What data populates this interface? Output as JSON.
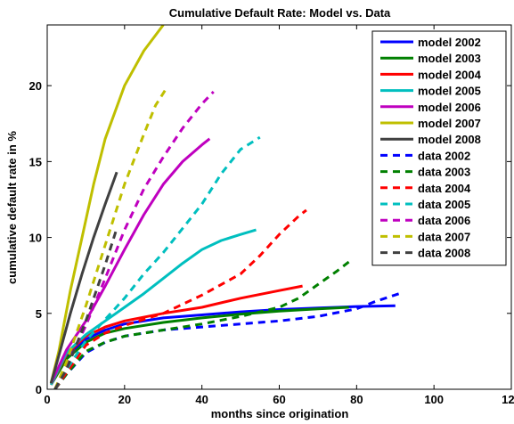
{
  "chart_data": {
    "type": "line",
    "title": "Cumulative Default Rate: Model vs. Data",
    "xlabel": "months since origination",
    "ylabel": "cumulative default rate in %",
    "xlim": [
      0,
      120
    ],
    "ylim": [
      0,
      24
    ],
    "xticks": [
      0,
      20,
      40,
      60,
      80,
      100,
      120
    ],
    "yticks": [
      0,
      5,
      10,
      15,
      20
    ],
    "grid": false,
    "legend_position": "top-right",
    "series": [
      {
        "name": "model 2002",
        "color": "#0000ff",
        "style": "solid",
        "x": [
          1,
          5,
          10,
          15,
          20,
          30,
          40,
          50,
          60,
          70,
          80,
          90
        ],
        "y": [
          0.3,
          2.2,
          3.3,
          3.9,
          4.3,
          4.7,
          4.9,
          5.1,
          5.25,
          5.35,
          5.45,
          5.5
        ]
      },
      {
        "name": "model 2003",
        "color": "#008000",
        "style": "solid",
        "x": [
          1,
          5,
          10,
          15,
          20,
          30,
          40,
          50,
          60,
          70,
          78
        ],
        "y": [
          0.3,
          2.0,
          3.1,
          3.7,
          4.0,
          4.4,
          4.7,
          4.95,
          5.15,
          5.3,
          5.4
        ]
      },
      {
        "name": "model 2004",
        "color": "#ff0000",
        "style": "solid",
        "x": [
          1,
          5,
          10,
          15,
          20,
          30,
          40,
          50,
          60,
          66
        ],
        "y": [
          0.3,
          2.3,
          3.5,
          4.1,
          4.5,
          5.0,
          5.4,
          6.0,
          6.5,
          6.8
        ]
      },
      {
        "name": "model 2005",
        "color": "#00bfbf",
        "style": "solid",
        "x": [
          1,
          5,
          10,
          15,
          20,
          25,
          30,
          35,
          40,
          45,
          50,
          54
        ],
        "y": [
          0.3,
          2.4,
          3.6,
          4.5,
          5.4,
          6.3,
          7.3,
          8.3,
          9.2,
          9.8,
          10.2,
          10.5
        ]
      },
      {
        "name": "model 2006",
        "color": "#bf00bf",
        "style": "solid",
        "x": [
          1,
          5,
          10,
          15,
          20,
          25,
          30,
          35,
          40,
          42
        ],
        "y": [
          0.4,
          2.6,
          4.5,
          6.8,
          9.2,
          11.5,
          13.5,
          15.0,
          16.1,
          16.5
        ]
      },
      {
        "name": "model 2007",
        "color": "#bfbf00",
        "style": "solid",
        "x": [
          1,
          3,
          6,
          9,
          12,
          15,
          20,
          25,
          30
        ],
        "y": [
          0.4,
          2.5,
          6.5,
          10.0,
          13.5,
          16.5,
          20.0,
          22.3,
          24.0
        ]
      },
      {
        "name": "model 2008",
        "color": "#404040",
        "style": "solid",
        "x": [
          1,
          3,
          6,
          9,
          12,
          15,
          18
        ],
        "y": [
          0.4,
          2.2,
          5.0,
          7.6,
          10.0,
          12.2,
          14.3
        ]
      },
      {
        "name": "data 2002",
        "color": "#0000ff",
        "style": "dashed",
        "x": [
          2,
          5,
          10,
          15,
          20,
          30,
          40,
          50,
          60,
          70,
          80,
          85,
          91
        ],
        "y": [
          0.0,
          1.0,
          2.4,
          3.1,
          3.5,
          3.9,
          4.1,
          4.3,
          4.5,
          4.8,
          5.3,
          5.8,
          6.3
        ]
      },
      {
        "name": "data 2003",
        "color": "#008000",
        "style": "dashed",
        "x": [
          2,
          5,
          10,
          15,
          20,
          30,
          40,
          50,
          60,
          65,
          70,
          75,
          78
        ],
        "y": [
          0.0,
          1.0,
          2.5,
          3.1,
          3.5,
          3.9,
          4.3,
          4.8,
          5.4,
          6.0,
          6.9,
          7.8,
          8.4
        ]
      },
      {
        "name": "data 2004",
        "color": "#ff0000",
        "style": "dashed",
        "x": [
          2,
          5,
          10,
          15,
          20,
          30,
          40,
          50,
          55,
          60,
          65,
          67
        ],
        "y": [
          0.0,
          1.1,
          2.9,
          3.7,
          4.2,
          5.0,
          6.2,
          7.6,
          8.8,
          10.2,
          11.4,
          11.8
        ]
      },
      {
        "name": "data 2005",
        "color": "#00bfbf",
        "style": "dashed",
        "x": [
          2,
          5,
          10,
          15,
          20,
          25,
          30,
          35,
          40,
          45,
          50,
          55
        ],
        "y": [
          0.0,
          1.3,
          3.2,
          4.6,
          6.0,
          7.6,
          9.0,
          10.6,
          12.2,
          14.2,
          15.8,
          16.6
        ]
      },
      {
        "name": "data 2006",
        "color": "#bf00bf",
        "style": "dashed",
        "x": [
          2,
          5,
          10,
          15,
          20,
          25,
          30,
          35,
          40,
          43
        ],
        "y": [
          0.0,
          1.5,
          4.2,
          7.3,
          10.5,
          13.2,
          15.3,
          17.2,
          18.8,
          19.6
        ]
      },
      {
        "name": "data 2007",
        "color": "#bfbf00",
        "style": "dashed",
        "x": [
          2,
          5,
          10,
          15,
          20,
          25,
          28,
          31
        ],
        "y": [
          0.0,
          1.8,
          5.5,
          9.5,
          13.5,
          16.8,
          18.7,
          19.9
        ]
      },
      {
        "name": "data 2008",
        "color": "#404040",
        "style": "dashed",
        "x": [
          2,
          5,
          10,
          15,
          18
        ],
        "y": [
          0.0,
          1.3,
          4.5,
          8.2,
          10.6
        ]
      }
    ]
  }
}
